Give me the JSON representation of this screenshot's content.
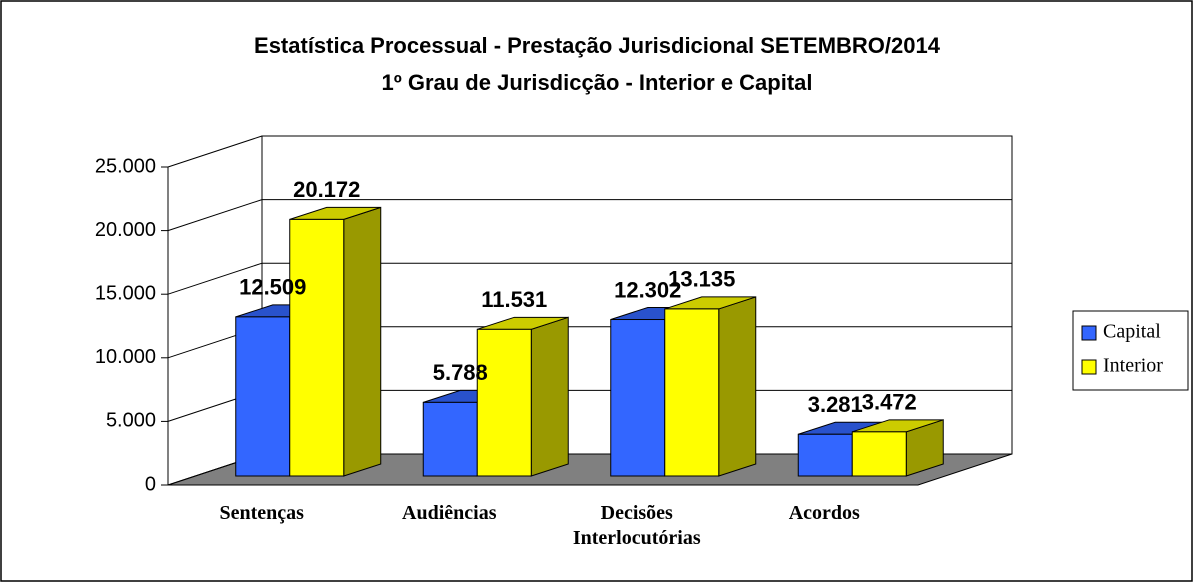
{
  "chart_data": {
    "type": "bar3d",
    "title": "Estatística Processual - Prestação Jurisdicional SETEMBRO/2014",
    "subtitle": "1º Grau de Jurisdicção - Interior e Capital",
    "categories": [
      "Sentenças",
      "Audiências",
      "Decisões Interlocutórias",
      "Acordos"
    ],
    "series": [
      {
        "name": "Capital",
        "color": "#3366ff",
        "values": [
          12509,
          5788,
          12302,
          3281
        ],
        "value_labels": [
          "12.509",
          "5.788",
          "12.302",
          "3.281"
        ]
      },
      {
        "name": "Interior",
        "color": "#ffff00",
        "values": [
          20172,
          11531,
          13135,
          3472
        ],
        "value_labels": [
          "20.172",
          "11.531",
          "13.135",
          "3.472"
        ]
      }
    ],
    "ylim": [
      0,
      25000
    ],
    "yticks": [
      0,
      {
        "value": 5000,
        "label": "5.000"
      },
      {
        "value": 10000,
        "label": "10.000"
      },
      {
        "value": 15000,
        "label": "15.000"
      },
      {
        "value": 20000,
        "label": "20.000"
      },
      {
        "value": 25000,
        "label": "25.000"
      }
    ],
    "grid": true,
    "legend": "right",
    "floor_color": "#808080"
  }
}
